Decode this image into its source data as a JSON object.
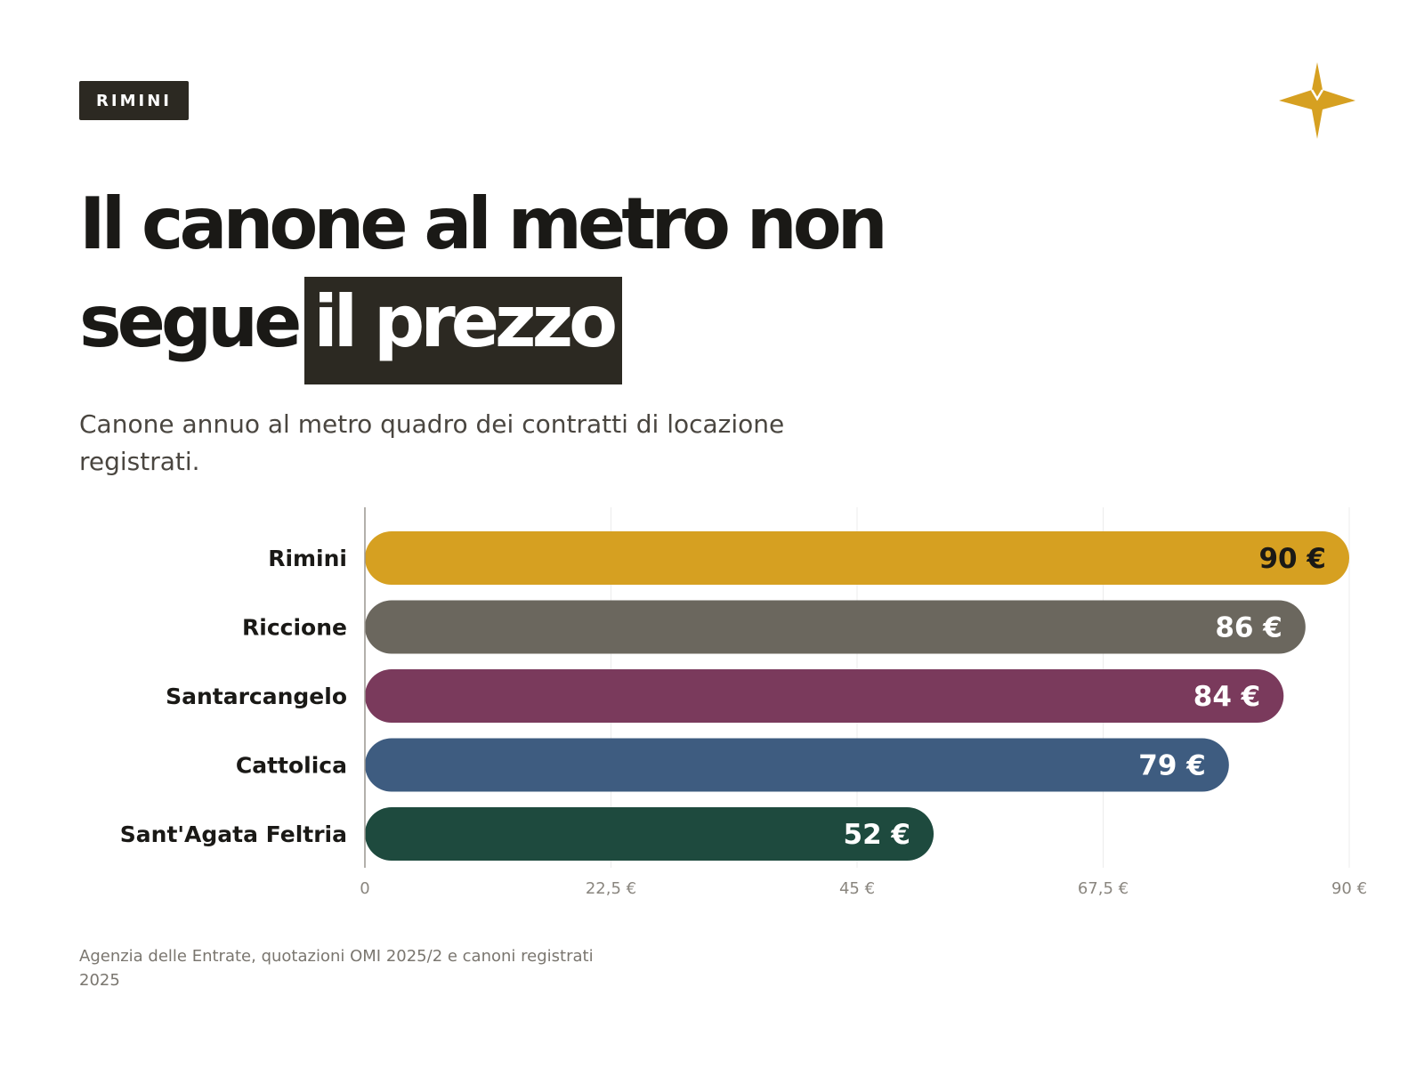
{
  "header": {
    "tag": "RIMINI",
    "logo_icon": "compass-star-icon",
    "logo_color": "#D6A021"
  },
  "title": {
    "line1": "Il canone al metro non",
    "line2_plain": "segue",
    "line2_highlight": "il prezzo"
  },
  "subtitle": "Canone annuo al metro quadro dei contratti di locazione registrati.",
  "source": "Agenzia delle Entrate, quotazioni OMI 2025/2 e canoni registrati 2025",
  "chart_data": {
    "type": "bar",
    "orientation": "horizontal",
    "categories": [
      "Rimini",
      "Riccione",
      "Santarcangelo",
      "Cattolica",
      "Sant'Agata Feltria"
    ],
    "values": [
      90,
      86,
      84,
      79,
      52
    ],
    "value_labels": [
      "90 €",
      "86 €",
      "84 €",
      "79 €",
      "52 €"
    ],
    "colors": [
      "#D6A021",
      "#6B675E",
      "#7A3A5C",
      "#3E5C80",
      "#1E4A3E"
    ],
    "label_colors": [
      "#1a1916",
      "#ffffff",
      "#ffffff",
      "#ffffff",
      "#ffffff"
    ],
    "xlim": [
      0,
      90
    ],
    "xticks": [
      0,
      22.5,
      45,
      67.5,
      90
    ],
    "xtick_labels": [
      "0",
      "22,5 €",
      "45 €",
      "67,5 €",
      "90 €"
    ],
    "grid": true
  }
}
